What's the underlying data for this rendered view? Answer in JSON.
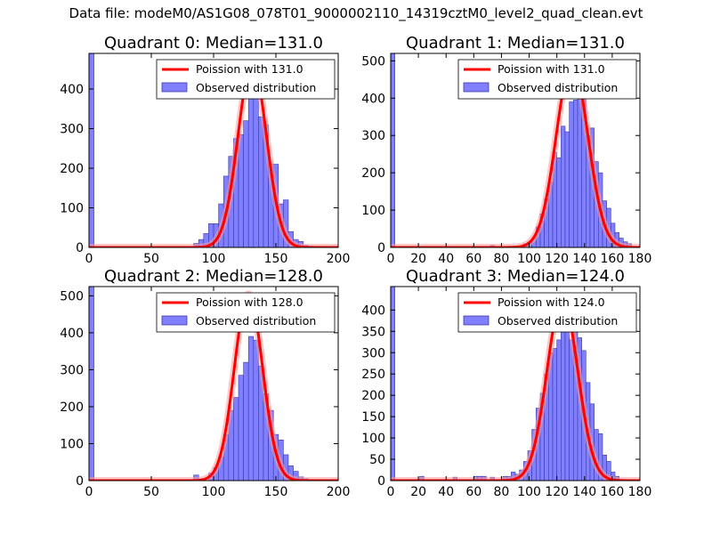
{
  "figure_title": "Data file: modeM0/AS1G08_078T01_9000002110_14319cztM0_level2_quad_clean.evt",
  "colors": {
    "bar": "#7f7fff",
    "bar_edge": "#3a3aa8",
    "poisson": "#ff0000",
    "poisson_glow": "#ff9999",
    "axis": "#000000"
  },
  "chart_data": [
    {
      "type": "bar",
      "title": "Quadrant 0: Median=131.0",
      "median": 131.0,
      "xlim": [
        0,
        200
      ],
      "ylim": [
        0,
        490
      ],
      "xticks": [
        0,
        50,
        100,
        150,
        200
      ],
      "yticks": [
        0,
        100,
        200,
        300,
        400
      ],
      "bin_width": 4,
      "bins": [
        [
          0,
          490
        ],
        [
          84,
          10
        ],
        [
          88,
          20
        ],
        [
          92,
          35
        ],
        [
          96,
          60
        ],
        [
          100,
          60
        ],
        [
          104,
          110
        ],
        [
          108,
          180
        ],
        [
          112,
          230
        ],
        [
          116,
          275
        ],
        [
          120,
          285
        ],
        [
          124,
          320
        ],
        [
          128,
          400
        ],
        [
          132,
          410
        ],
        [
          136,
          330
        ],
        [
          140,
          310
        ],
        [
          144,
          210
        ],
        [
          148,
          210
        ],
        [
          152,
          110
        ],
        [
          156,
          120
        ],
        [
          160,
          40
        ],
        [
          164,
          20
        ],
        [
          168,
          15
        ],
        [
          172,
          5
        ],
        [
          176,
          3
        ]
      ],
      "poisson_peak": 465,
      "legend": {
        "line": "Poission with 131.0",
        "bars": "Observed distribution"
      }
    },
    {
      "type": "bar",
      "title": "Quadrant 1: Median=131.0",
      "median": 131.0,
      "xlim": [
        0,
        180
      ],
      "ylim": [
        0,
        520
      ],
      "xticks": [
        0,
        20,
        40,
        60,
        80,
        100,
        120,
        140,
        160,
        180
      ],
      "yticks": [
        0,
        100,
        200,
        300,
        400,
        500
      ],
      "bin_width": 3,
      "bins": [
        [
          0,
          520
        ],
        [
          72,
          5
        ],
        [
          93,
          5
        ],
        [
          96,
          10
        ],
        [
          99,
          15
        ],
        [
          102,
          25
        ],
        [
          105,
          55
        ],
        [
          108,
          90
        ],
        [
          111,
          130
        ],
        [
          114,
          175
        ],
        [
          117,
          255
        ],
        [
          120,
          240
        ],
        [
          123,
          325
        ],
        [
          126,
          310
        ],
        [
          129,
          390
        ],
        [
          132,
          395
        ],
        [
          135,
          475
        ],
        [
          138,
          400
        ],
        [
          141,
          300
        ],
        [
          144,
          320
        ],
        [
          147,
          230
        ],
        [
          150,
          200
        ],
        [
          153,
          125
        ],
        [
          156,
          105
        ],
        [
          159,
          65
        ],
        [
          162,
          40
        ],
        [
          165,
          25
        ],
        [
          168,
          15
        ],
        [
          171,
          10
        ]
      ],
      "poisson_peak": 495,
      "legend": {
        "line": "Poission with 131.0",
        "bars": "Observed distribution"
      }
    },
    {
      "type": "bar",
      "title": "Quadrant 2: Median=128.0",
      "median": 128.0,
      "xlim": [
        0,
        200
      ],
      "ylim": [
        0,
        525
      ],
      "xticks": [
        0,
        50,
        100,
        150,
        200
      ],
      "yticks": [
        0,
        100,
        200,
        300,
        400,
        500
      ],
      "bin_width": 4,
      "bins": [
        [
          0,
          525
        ],
        [
          84,
          15
        ],
        [
          96,
          20
        ],
        [
          100,
          35
        ],
        [
          104,
          65
        ],
        [
          108,
          125
        ],
        [
          112,
          190
        ],
        [
          116,
          225
        ],
        [
          120,
          285
        ],
        [
          124,
          320
        ],
        [
          128,
          390
        ],
        [
          132,
          380
        ],
        [
          136,
          310
        ],
        [
          140,
          235
        ],
        [
          144,
          190
        ],
        [
          148,
          125
        ],
        [
          152,
          110
        ],
        [
          156,
          70
        ],
        [
          160,
          40
        ],
        [
          164,
          25
        ],
        [
          168,
          10
        ],
        [
          172,
          5
        ]
      ],
      "poisson_peak": 505,
      "legend": {
        "line": "Poission with 128.0",
        "bars": "Observed distribution"
      }
    },
    {
      "type": "bar",
      "title": "Quadrant 3: Median=124.0",
      "median": 124.0,
      "xlim": [
        0,
        180
      ],
      "ylim": [
        0,
        455
      ],
      "xticks": [
        0,
        20,
        40,
        60,
        80,
        100,
        120,
        140,
        160,
        180
      ],
      "yticks": [
        0,
        50,
        100,
        150,
        200,
        250,
        300,
        350,
        400
      ],
      "bin_width": 3,
      "bins": [
        [
          0,
          455
        ],
        [
          21,
          10
        ],
        [
          45,
          8
        ],
        [
          60,
          10
        ],
        [
          63,
          10
        ],
        [
          66,
          10
        ],
        [
          72,
          8
        ],
        [
          81,
          10
        ],
        [
          84,
          10
        ],
        [
          87,
          20
        ],
        [
          90,
          15
        ],
        [
          93,
          25
        ],
        [
          96,
          45
        ],
        [
          99,
          70
        ],
        [
          102,
          120
        ],
        [
          105,
          170
        ],
        [
          108,
          205
        ],
        [
          111,
          250
        ],
        [
          114,
          300
        ],
        [
          117,
          310
        ],
        [
          120,
          330
        ],
        [
          123,
          380
        ],
        [
          126,
          370
        ],
        [
          129,
          330
        ],
        [
          132,
          395
        ],
        [
          135,
          335
        ],
        [
          138,
          305
        ],
        [
          141,
          230
        ],
        [
          144,
          180
        ],
        [
          147,
          120
        ],
        [
          150,
          110
        ],
        [
          153,
          60
        ],
        [
          156,
          45
        ],
        [
          159,
          20
        ],
        [
          162,
          10
        ]
      ],
      "poisson_peak": 425,
      "legend": {
        "line": "Poission with 124.0",
        "bars": "Observed distribution"
      }
    }
  ]
}
